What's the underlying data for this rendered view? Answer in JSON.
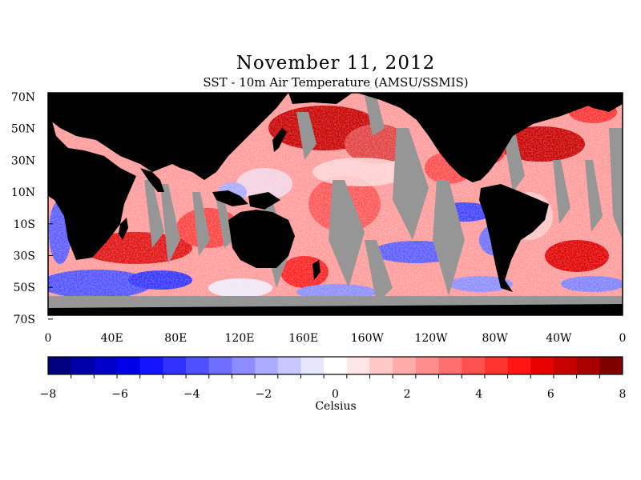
{
  "title": "November 11, 2012",
  "subtitle": "SST - 10m Air Temperature (AMSU/SSMIS)",
  "lat_labels": [
    "70N",
    "50N",
    "30N",
    "10N",
    "10S",
    "30S",
    "50S",
    "70S"
  ],
  "lon_labels": [
    "0",
    "40E",
    "80E",
    "120E",
    "160E",
    "160W",
    "120W",
    "80W",
    "40W",
    "0"
  ],
  "colorbar": {
    "labels": [
      "−8",
      "−6",
      "−4",
      "−2",
      "0",
      "2",
      "4",
      "6",
      "8"
    ],
    "range": [
      -8,
      8
    ],
    "units": "Celsius",
    "colors": [
      "#000080",
      "#0000a8",
      "#0000c8",
      "#0000e6",
      "#1414ff",
      "#3232ff",
      "#5050ff",
      "#6e6eff",
      "#8c8cff",
      "#aaaaff",
      "#c8c8ff",
      "#e6e6ff",
      "#ffffff",
      "#ffe6e6",
      "#ffc8c8",
      "#ffaaaa",
      "#ff8c8c",
      "#ff6e6e",
      "#ff5050",
      "#ff3232",
      "#ff1414",
      "#e60000",
      "#c80000",
      "#a80000",
      "#800000"
    ]
  },
  "colors": {
    "land": "#000000",
    "missing": "#969696",
    "frame": "#000000"
  }
}
